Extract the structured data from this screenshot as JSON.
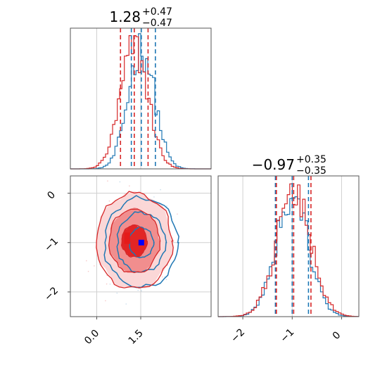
{
  "chart_data": {
    "type": "corner",
    "colors": {
      "series_a": "#d62728",
      "series_b": "#1f77b4",
      "grid": "#d0d0d0",
      "axes": "#555555",
      "marker": "#0000ff"
    },
    "series": [
      {
        "color": "#d62728",
        "param1_mean": 1.28,
        "param1_std": 0.47,
        "param2_mean": -0.97,
        "param2_std": 0.35
      },
      {
        "color": "#1f77b4",
        "param1_mean": 1.52,
        "param1_std": 0.45,
        "param2_mean": -1.0,
        "param2_std": 0.33
      }
    ],
    "param1_title": {
      "value": "1.28",
      "upper": "+0.47",
      "lower": "−0.47"
    },
    "param2_title": {
      "value": "−0.97",
      "upper": "+0.35",
      "lower": "−0.35"
    },
    "param1_quantiles": {
      "series_a": [
        0.81,
        1.28,
        1.75
      ],
      "series_b": [
        1.18,
        1.52,
        2.0
      ]
    },
    "param2_quantiles": {
      "series_a": [
        -1.32,
        -0.97,
        -0.62
      ],
      "series_b": [
        -1.34,
        -1.0,
        -0.67
      ]
    },
    "truth_marker": {
      "x": 1.52,
      "y": -1.0
    },
    "x1_range": [
      -0.9,
      3.9
    ],
    "x2_range": [
      -2.5,
      0.35
    ],
    "y2_range": [
      -2.5,
      0.35
    ],
    "x1_ticks": [
      0.0,
      1.5
    ],
    "x1_tick_labels": [
      "0.0",
      "1.5"
    ],
    "x2_ticks": [
      -2,
      -1,
      0
    ],
    "x2_tick_labels": [
      "−2",
      "−1",
      "0"
    ],
    "y2_ticks": [
      0,
      -1,
      -2
    ],
    "y2_tick_labels": [
      "0",
      "−1",
      "−2"
    ],
    "contour_levels": [
      0.39,
      0.86,
      0.99
    ],
    "grid": true
  }
}
